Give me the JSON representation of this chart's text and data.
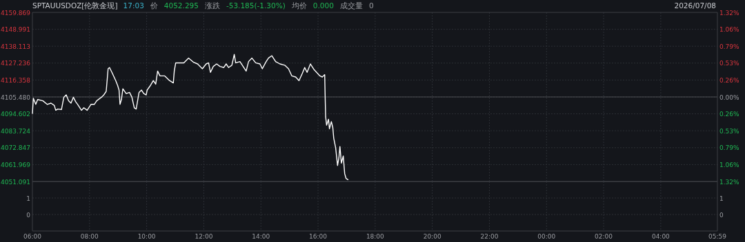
{
  "chart_data": [
    {
      "type": "line",
      "title": "SPTAUUSDOZ[伦敦金现]",
      "subtitle": "2026/07/08",
      "annotations": [
        "17:03",
        "价",
        "4052.295",
        "涨跌",
        "-53.185(-1.30%)",
        "均价",
        "0.000",
        "成交量",
        "0"
      ],
      "x": [
        "2026-07-08T06:00",
        "2026-07-08T06:02",
        "2026-07-08T06:07",
        "2026-07-08T06:11",
        "2026-07-08T06:22",
        "2026-07-08T06:31",
        "2026-07-08T06:39",
        "2026-07-08T06:46",
        "2026-07-08T06:49",
        "2026-07-08T06:53",
        "2026-07-08T07:01",
        "2026-07-08T07:06",
        "2026-07-08T07:11",
        "2026-07-08T07:16",
        "2026-07-08T07:21",
        "2026-07-08T07:26",
        "2026-07-08T07:31",
        "2026-07-08T07:35",
        "2026-07-08T07:43",
        "2026-07-08T07:48",
        "2026-07-08T07:55",
        "2026-07-08T08:03",
        "2026-07-08T08:10",
        "2026-07-08T08:15",
        "2026-07-08T08:25",
        "2026-07-08T08:30",
        "2026-07-08T08:35",
        "2026-07-08T08:39",
        "2026-07-08T08:42",
        "2026-07-08T08:47",
        "2026-07-08T08:55",
        "2026-07-08T08:59",
        "2026-07-08T09:02",
        "2026-07-08T09:04",
        "2026-07-08T09:07",
        "2026-07-08T09:10",
        "2026-07-08T09:17",
        "2026-07-08T09:24",
        "2026-07-08T09:29",
        "2026-07-08T09:34",
        "2026-07-08T09:38",
        "2026-07-08T09:44",
        "2026-07-08T09:49",
        "2026-07-08T09:54",
        "2026-07-08T09:59",
        "2026-07-08T10:01",
        "2026-07-08T10:08",
        "2026-07-08T10:14",
        "2026-07-08T10:19",
        "2026-07-08T10:23",
        "2026-07-08T10:28",
        "2026-07-08T10:38",
        "2026-07-08T10:48",
        "2026-07-08T10:56",
        "2026-07-08T10:58",
        "2026-07-08T11:01",
        "2026-07-08T11:08",
        "2026-07-08T11:18",
        "2026-07-08T11:28",
        "2026-07-08T11:38",
        "2026-07-08T11:47",
        "2026-07-08T11:57",
        "2026-07-08T12:05",
        "2026-07-08T12:10",
        "2026-07-08T12:14",
        "2026-07-08T12:20",
        "2026-07-08T12:27",
        "2026-07-08T12:34",
        "2026-07-08T12:42",
        "2026-07-08T12:47",
        "2026-07-08T12:52",
        "2026-07-08T12:59",
        "2026-07-08T13:04",
        "2026-07-08T13:07",
        "2026-07-08T13:16",
        "2026-07-08T13:24",
        "2026-07-08T13:29",
        "2026-07-08T13:34",
        "2026-07-08T13:41",
        "2026-07-08T13:49",
        "2026-07-08T13:58",
        "2026-07-08T14:03",
        "2026-07-08T14:11",
        "2026-07-08T14:16",
        "2026-07-08T14:23",
        "2026-07-08T14:31",
        "2026-07-08T14:40",
        "2026-07-08T14:50",
        "2026-07-08T14:58",
        "2026-07-08T15:05",
        "2026-07-08T15:13",
        "2026-07-08T15:20",
        "2026-07-08T15:27",
        "2026-07-08T15:32",
        "2026-07-08T15:37",
        "2026-07-08T15:44",
        "2026-07-08T15:52",
        "2026-07-08T15:57",
        "2026-07-08T16:04",
        "2026-07-08T16:09",
        "2026-07-08T16:14",
        "2026-07-08T16:15",
        "2026-07-08T16:16",
        "2026-07-08T16:18",
        "2026-07-08T16:22",
        "2026-07-08T16:24",
        "2026-07-08T16:28",
        "2026-07-08T16:31",
        "2026-07-08T16:33",
        "2026-07-08T16:37",
        "2026-07-08T16:41",
        "2026-07-08T16:44",
        "2026-07-08T16:46",
        "2026-07-08T16:49",
        "2026-07-08T16:53",
        "2026-07-08T16:56",
        "2026-07-08T16:59",
        "2026-07-08T17:03"
      ],
      "series": [
        {
          "color": "#ffffff",
          "values": [
            4094.9,
            4104.6,
            4100.7,
            4103.8,
            4103.0,
            4100.7,
            4101.5,
            4100.0,
            4096.9,
            4097.7,
            4097.4,
            4105.3,
            4106.8,
            4103.0,
            4101.5,
            4105.3,
            4102.3,
            4100.7,
            4096.9,
            4098.5,
            4096.9,
            4100.7,
            4100.7,
            4103.0,
            4105.3,
            4106.8,
            4109.1,
            4123.6,
            4124.4,
            4121.3,
            4116.0,
            4112.9,
            4109.9,
            4100.7,
            4103.8,
            4110.7,
            4107.6,
            4108.4,
            4105.3,
            4098.5,
            4097.7,
            4108.4,
            4109.9,
            4107.6,
            4106.8,
            4109.9,
            4112.9,
            4116.0,
            4113.7,
            4122.1,
            4119.0,
            4119.0,
            4116.0,
            4114.5,
            4122.1,
            4127.4,
            4127.4,
            4127.4,
            4130.5,
            4127.9,
            4126.7,
            4123.6,
            4126.7,
            4127.4,
            4121.3,
            4125.1,
            4126.7,
            4125.1,
            4124.4,
            4126.7,
            4124.4,
            4125.9,
            4132.8,
            4127.4,
            4128.2,
            4124.4,
            4122.1,
            4128.2,
            4130.5,
            4127.4,
            4126.7,
            4123.6,
            4128.2,
            4130.5,
            4132.0,
            4128.2,
            4126.7,
            4125.9,
            4123.6,
            4119.0,
            4118.3,
            4116.0,
            4120.6,
            4124.4,
            4121.3,
            4126.7,
            4122.9,
            4121.3,
            4119.0,
            4118.3,
            4119.8,
            4105.3,
            4092.7,
            4087.3,
            4091.1,
            4085.0,
            4089.6,
            4085.8,
            4078.9,
            4072.8,
            4061.4,
            4066.7,
            4073.6,
            4062.9,
            4067.5,
            4056.1,
            4053.0,
            4052.3
          ]
        }
      ],
      "xlim": [
        "2026-07-08T06:00",
        "2026-07-09T05:59"
      ],
      "xticks": [
        {
          "value": "2026-07-08T06:00",
          "label": null
        },
        {
          "value": "2026-07-08T08:00",
          "label": null
        },
        {
          "value": "2026-07-08T10:00",
          "label": null
        },
        {
          "value": "2026-07-08T12:00",
          "label": null
        },
        {
          "value": "2026-07-08T14:00",
          "label": null
        },
        {
          "value": "2026-07-08T16:00",
          "label": null
        },
        {
          "value": "2026-07-08T18:00",
          "label": null
        },
        {
          "value": "2026-07-08T20:00",
          "label": null
        },
        {
          "value": "2026-07-08T22:00",
          "label": null
        },
        {
          "value": "2026-07-09T00:00",
          "label": null
        },
        {
          "value": "2026-07-09T02:00",
          "label": null
        },
        {
          "value": "2026-07-09T04:00",
          "label": null
        },
        {
          "value": "2026-07-09T05:59",
          "label": null
        }
      ],
      "ylim": [
        4051.091,
        4159.869
      ],
      "yticks": [
        4051.091,
        4061.969,
        4072.847,
        4083.724,
        4094.602,
        {
          "value": 4105.48,
          "label": "4105.480"
        },
        4116.358,
        4127.236,
        4138.113,
        4148.991,
        4159.869
      ],
      "y2lim": [
        -1.32,
        1.32
      ],
      "y2ticks": [
        {
          "value": -1.32,
          "label": "1.32%"
        },
        {
          "value": -1.06,
          "label": "1.06%"
        },
        {
          "value": -0.79,
          "label": "0.79%"
        },
        {
          "value": -0.53,
          "label": "0.53%"
        },
        {
          "value": -0.26,
          "label": "0.26%"
        },
        {
          "value": 0,
          "label": "0.00%"
        },
        {
          "value": 0.26,
          "label": "0.26%"
        },
        {
          "value": 0.53,
          "label": "0.53%"
        },
        {
          "value": 0.79,
          "label": "0.79%"
        },
        {
          "value": 1.06,
          "label": "1.06%"
        },
        {
          "value": 1.32,
          "label": "1.32%"
        }
      ],
      "ref_lines": [
        {
          "axis": "y",
          "value": 4105.48,
          "color": "#4a4d53"
        }
      ],
      "grid": true,
      "tick_labels": "y"
    },
    {
      "type": "bar",
      "xlim": [
        "2026-07-08T06:00",
        "2026-07-09T05:59"
      ],
      "xticks": [
        {
          "value": "2026-07-08T06:00",
          "label": "06:00"
        },
        {
          "value": "2026-07-08T08:00",
          "label": "08:00"
        },
        {
          "value": "2026-07-08T10:00",
          "label": "10:00"
        },
        {
          "value": "2026-07-08T12:00",
          "label": "12:00"
        },
        {
          "value": "2026-07-08T14:00",
          "label": "14:00"
        },
        {
          "value": "2026-07-08T16:00",
          "label": "16:00"
        },
        {
          "value": "2026-07-08T18:00",
          "label": "18:00"
        },
        {
          "value": "2026-07-08T20:00",
          "label": "20:00"
        },
        {
          "value": "2026-07-08T22:00",
          "label": "22:00"
        },
        {
          "value": "2026-07-09T00:00",
          "label": "00:00"
        },
        {
          "value": "2026-07-09T02:00",
          "label": "02:00"
        },
        {
          "value": "2026-07-09T04:00",
          "label": "04:00"
        },
        {
          "value": "2026-07-09T05:59",
          "label": "05:59"
        }
      ],
      "ylim": [
        -1,
        2
      ],
      "yticks": [
        0,
        1
      ],
      "y2lim": [
        -1,
        2
      ],
      "y2ticks": [
        0,
        1
      ],
      "grid": true
    }
  ]
}
